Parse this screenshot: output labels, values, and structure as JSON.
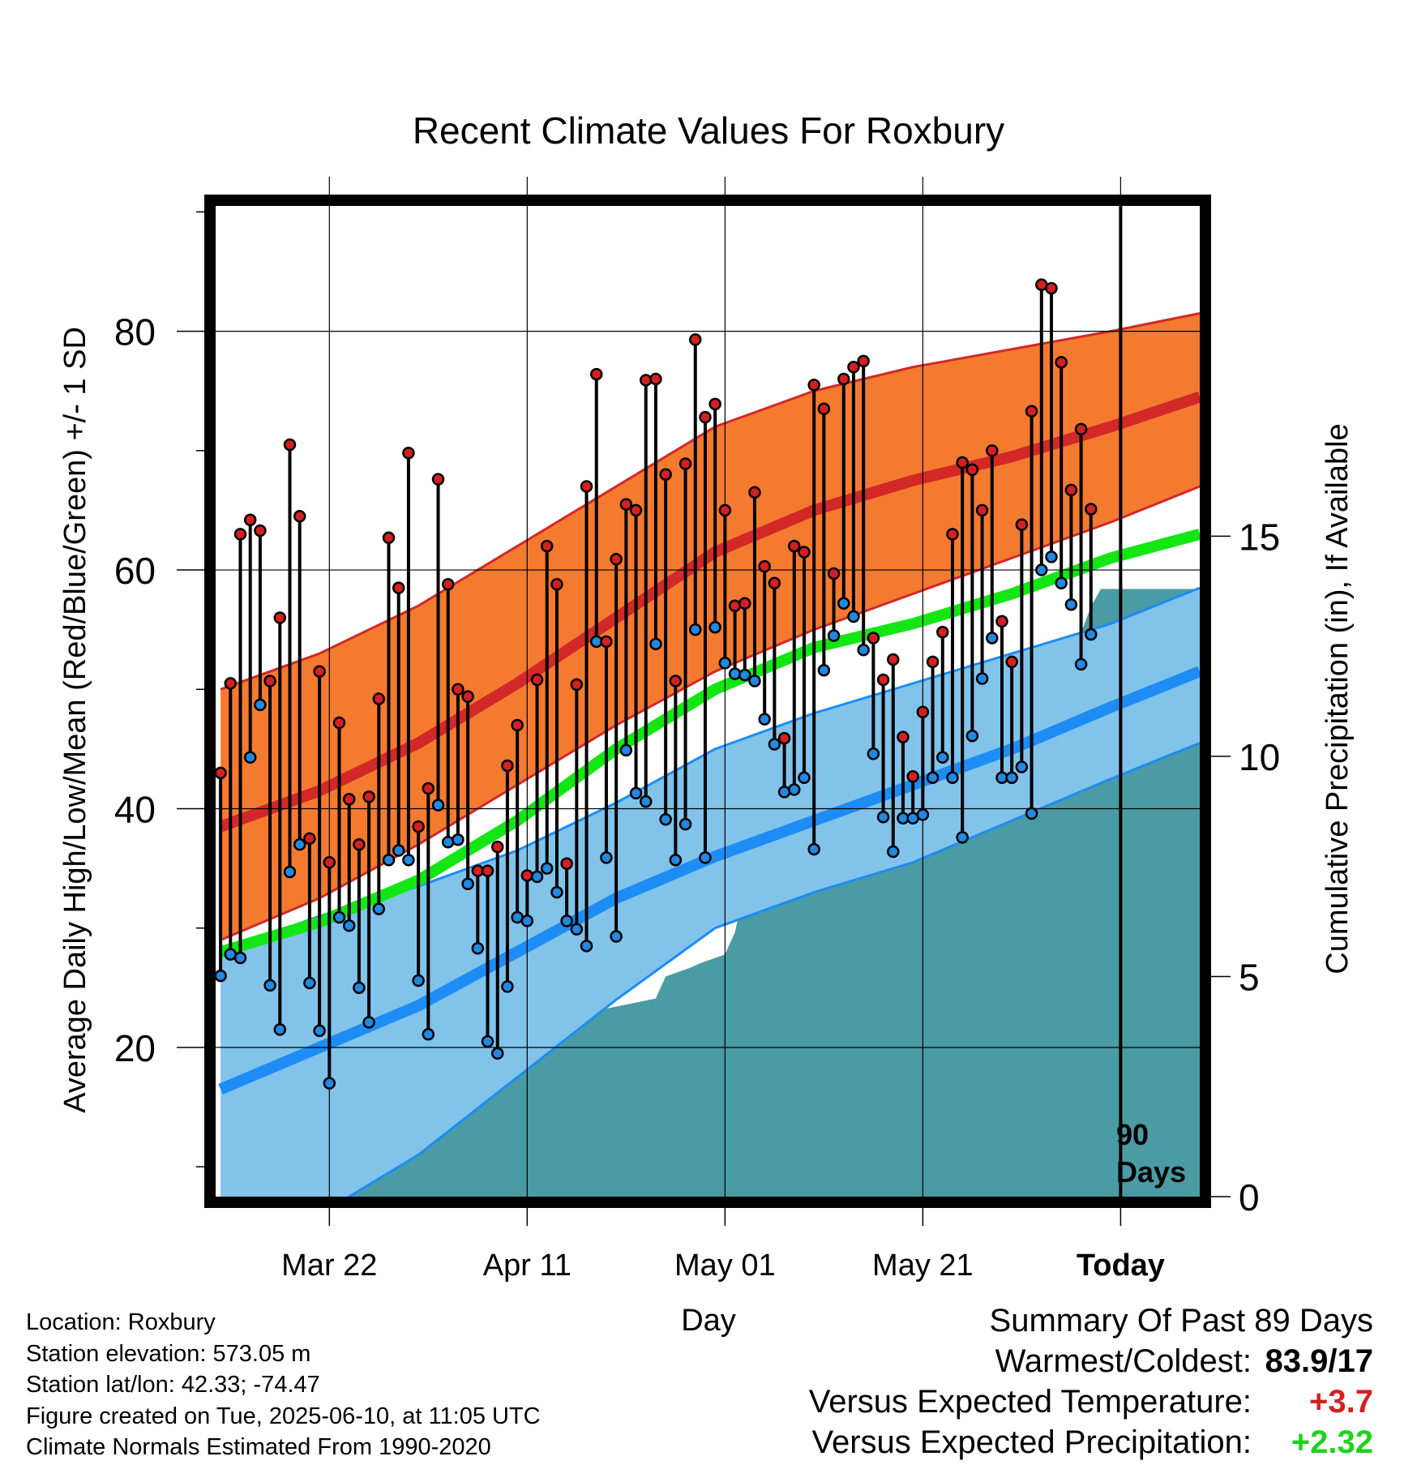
{
  "title": "Recent Climate Values For Roxbury",
  "xlabel": "Day",
  "ylabel_left": "Average Daily High/Low/Mean (Red/Blue/Green) +/- 1 SD",
  "ylabel_right": "Cumulative Precipitation (in), If Available",
  "today_label": [
    "90",
    "Days"
  ],
  "info": {
    "location": "Location: Roxbury",
    "elevation": "Station elevation: 573.05 m",
    "latlon": "Station lat/lon: 42.33; -74.47",
    "created": "Figure created on Tue, 2025-06-10, at 11:05 UTC",
    "normals": "Climate Normals Estimated From 1990-2020"
  },
  "summary": {
    "heading": "Summary Of Past 89 Days",
    "warm_cold_label": "Warmest/Coldest:",
    "warm_cold_value": "83.9/17",
    "temp_label": "Versus Expected Temperature:",
    "temp_value": "+3.7",
    "precip_label": "Versus Expected Precipitation:",
    "precip_value": "+2.32"
  },
  "colors": {
    "high_band": "#f47a30",
    "high_mean": "#d22828",
    "low_band": "#82c3ea",
    "low_mean": "#1e8cf5",
    "mean": "#14e614",
    "precip": "#4a9ba3",
    "max_dot": "#d42020",
    "min_dot": "#2288e0"
  },
  "chart_data": {
    "type": "line",
    "x_ticks": [
      {
        "day": 11,
        "label": "Mar 22"
      },
      {
        "day": 31,
        "label": "Apr 11"
      },
      {
        "day": 51,
        "label": "May 01"
      },
      {
        "day": 71,
        "label": "May 21"
      },
      {
        "day": 91,
        "label": "Today"
      }
    ],
    "xlim": [
      -0.5,
      99
    ],
    "today_day": 91,
    "temp_ylim": [
      7.5,
      90.5
    ],
    "temp_ticks": [
      20,
      40,
      60,
      80
    ],
    "precip_ylim": [
      0,
      22.5
    ],
    "precip_ticks": [
      0,
      5,
      10,
      15
    ],
    "normals": {
      "days": [
        0,
        10,
        20,
        30,
        40,
        50,
        60,
        70,
        80,
        90,
        99
      ],
      "high_upper": [
        50,
        53,
        57,
        62,
        67,
        72,
        75,
        77,
        78.5,
        80,
        81.5
      ],
      "high_mean": [
        38.5,
        41.5,
        45.5,
        50.5,
        56,
        61.5,
        65,
        67.5,
        69.5,
        72,
        74.5
      ],
      "high_lower": [
        29,
        32.5,
        37,
        42,
        47,
        51.5,
        55,
        58,
        61,
        64,
        67
      ],
      "mean": [
        28,
        30.5,
        34,
        39,
        45,
        50,
        53.5,
        55.5,
        58,
        61,
        63
      ],
      "low_upper": [
        28,
        31,
        33.5,
        36.5,
        40.5,
        45,
        48,
        50.5,
        53,
        55.5,
        58.5
      ],
      "low_mean": [
        16.5,
        20,
        23.5,
        28,
        32.5,
        36,
        39,
        42,
        45,
        48.5,
        51.5
      ],
      "low_lower": [
        2,
        6,
        11,
        17.5,
        24,
        30,
        33,
        35.5,
        39,
        42.5,
        45.5
      ]
    },
    "daily": {
      "start_day": 0,
      "max": [
        43,
        50.5,
        63,
        64.2,
        63.3,
        50.7,
        56,
        70.5,
        64.5,
        37.5,
        51.5,
        35.5,
        47.2,
        40.8,
        37,
        41,
        49.2,
        62.7,
        58.5,
        69.8,
        38.5,
        41.7,
        67.6,
        58.8,
        50,
        49.4,
        34.8,
        34.8,
        36.8,
        43.6,
        47,
        34.4,
        50.8,
        62,
        58.8,
        35.4,
        50.4,
        67,
        76.4,
        54,
        60.9,
        65.5,
        65,
        75.9,
        76,
        68,
        50.7,
        68.9,
        79.3,
        72.8,
        73.9,
        65,
        57,
        57.2,
        66.5,
        60.3,
        58.9,
        45.9,
        62,
        61.5,
        75.5,
        73.5,
        59.7,
        76,
        77,
        77.5,
        54.3,
        50.8,
        52.5,
        46,
        42.7,
        48.1,
        52.3,
        54.8,
        63,
        69,
        68.4,
        65,
        70,
        55.7,
        52.3,
        63.8,
        73.3,
        83.9,
        83.6,
        77.4,
        66.7,
        71.8,
        65.1
      ],
      "min": [
        26,
        27.8,
        27.5,
        44.3,
        48.7,
        25.2,
        21.5,
        34.7,
        37,
        25.4,
        21.4,
        17,
        30.9,
        30.2,
        25,
        22.1,
        31.6,
        35.7,
        36.5,
        35.7,
        25.6,
        21.1,
        40.3,
        37.2,
        37.4,
        33.7,
        28.3,
        20.5,
        19.5,
        25.1,
        30.9,
        30.6,
        34.3,
        35,
        33,
        30.6,
        29.9,
        28.5,
        54,
        35.9,
        29.3,
        44.9,
        41.3,
        40.6,
        53.8,
        39.1,
        35.7,
        38.7,
        55,
        35.9,
        55.2,
        52.2,
        51.3,
        51.2,
        50.7,
        47.5,
        45.4,
        41.4,
        41.6,
        42.6,
        36.6,
        51.6,
        54.5,
        57.2,
        56.1,
        53.3,
        44.6,
        39.3,
        36.4,
        39.2,
        39.2,
        39.5,
        42.6,
        44.3,
        42.6,
        37.6,
        46.1,
        50.9,
        54.3,
        42.6,
        42.6,
        43.5,
        39.6,
        60,
        61.1,
        58.9,
        57.1,
        52.1,
        54.6
      ]
    },
    "precip": {
      "x": [
        3.5,
        4.5,
        7,
        8,
        17,
        18,
        21,
        22,
        23,
        24,
        25,
        26,
        28,
        30,
        31,
        31.5,
        37,
        37.5,
        44,
        45,
        47.5,
        48.5,
        51,
        52,
        53,
        54,
        56,
        56.5,
        57.5,
        58,
        62,
        63,
        69.5,
        70.5,
        71.5,
        72.5,
        75,
        75.5,
        79,
        79.5,
        84.5,
        85.5,
        86.5,
        88,
        89,
        99
      ],
      "y": [
        0,
        0.8,
        1,
        1.4,
        1.5,
        1.9,
        2,
        2.5,
        2.6,
        3,
        3.15,
        3.2,
        3.3,
        3.4,
        3.8,
        3.9,
        4,
        4.2,
        4.5,
        5,
        5.2,
        5.3,
        5.5,
        6,
        7,
        7.8,
        8,
        8.5,
        9.3,
        9.4,
        9.6,
        9.7,
        9.7,
        9.9,
        10.2,
        10.4,
        10.5,
        10.5,
        10.6,
        11.8,
        11.8,
        12.2,
        12.5,
        13.4,
        13.8,
        13.8
      ]
    }
  }
}
